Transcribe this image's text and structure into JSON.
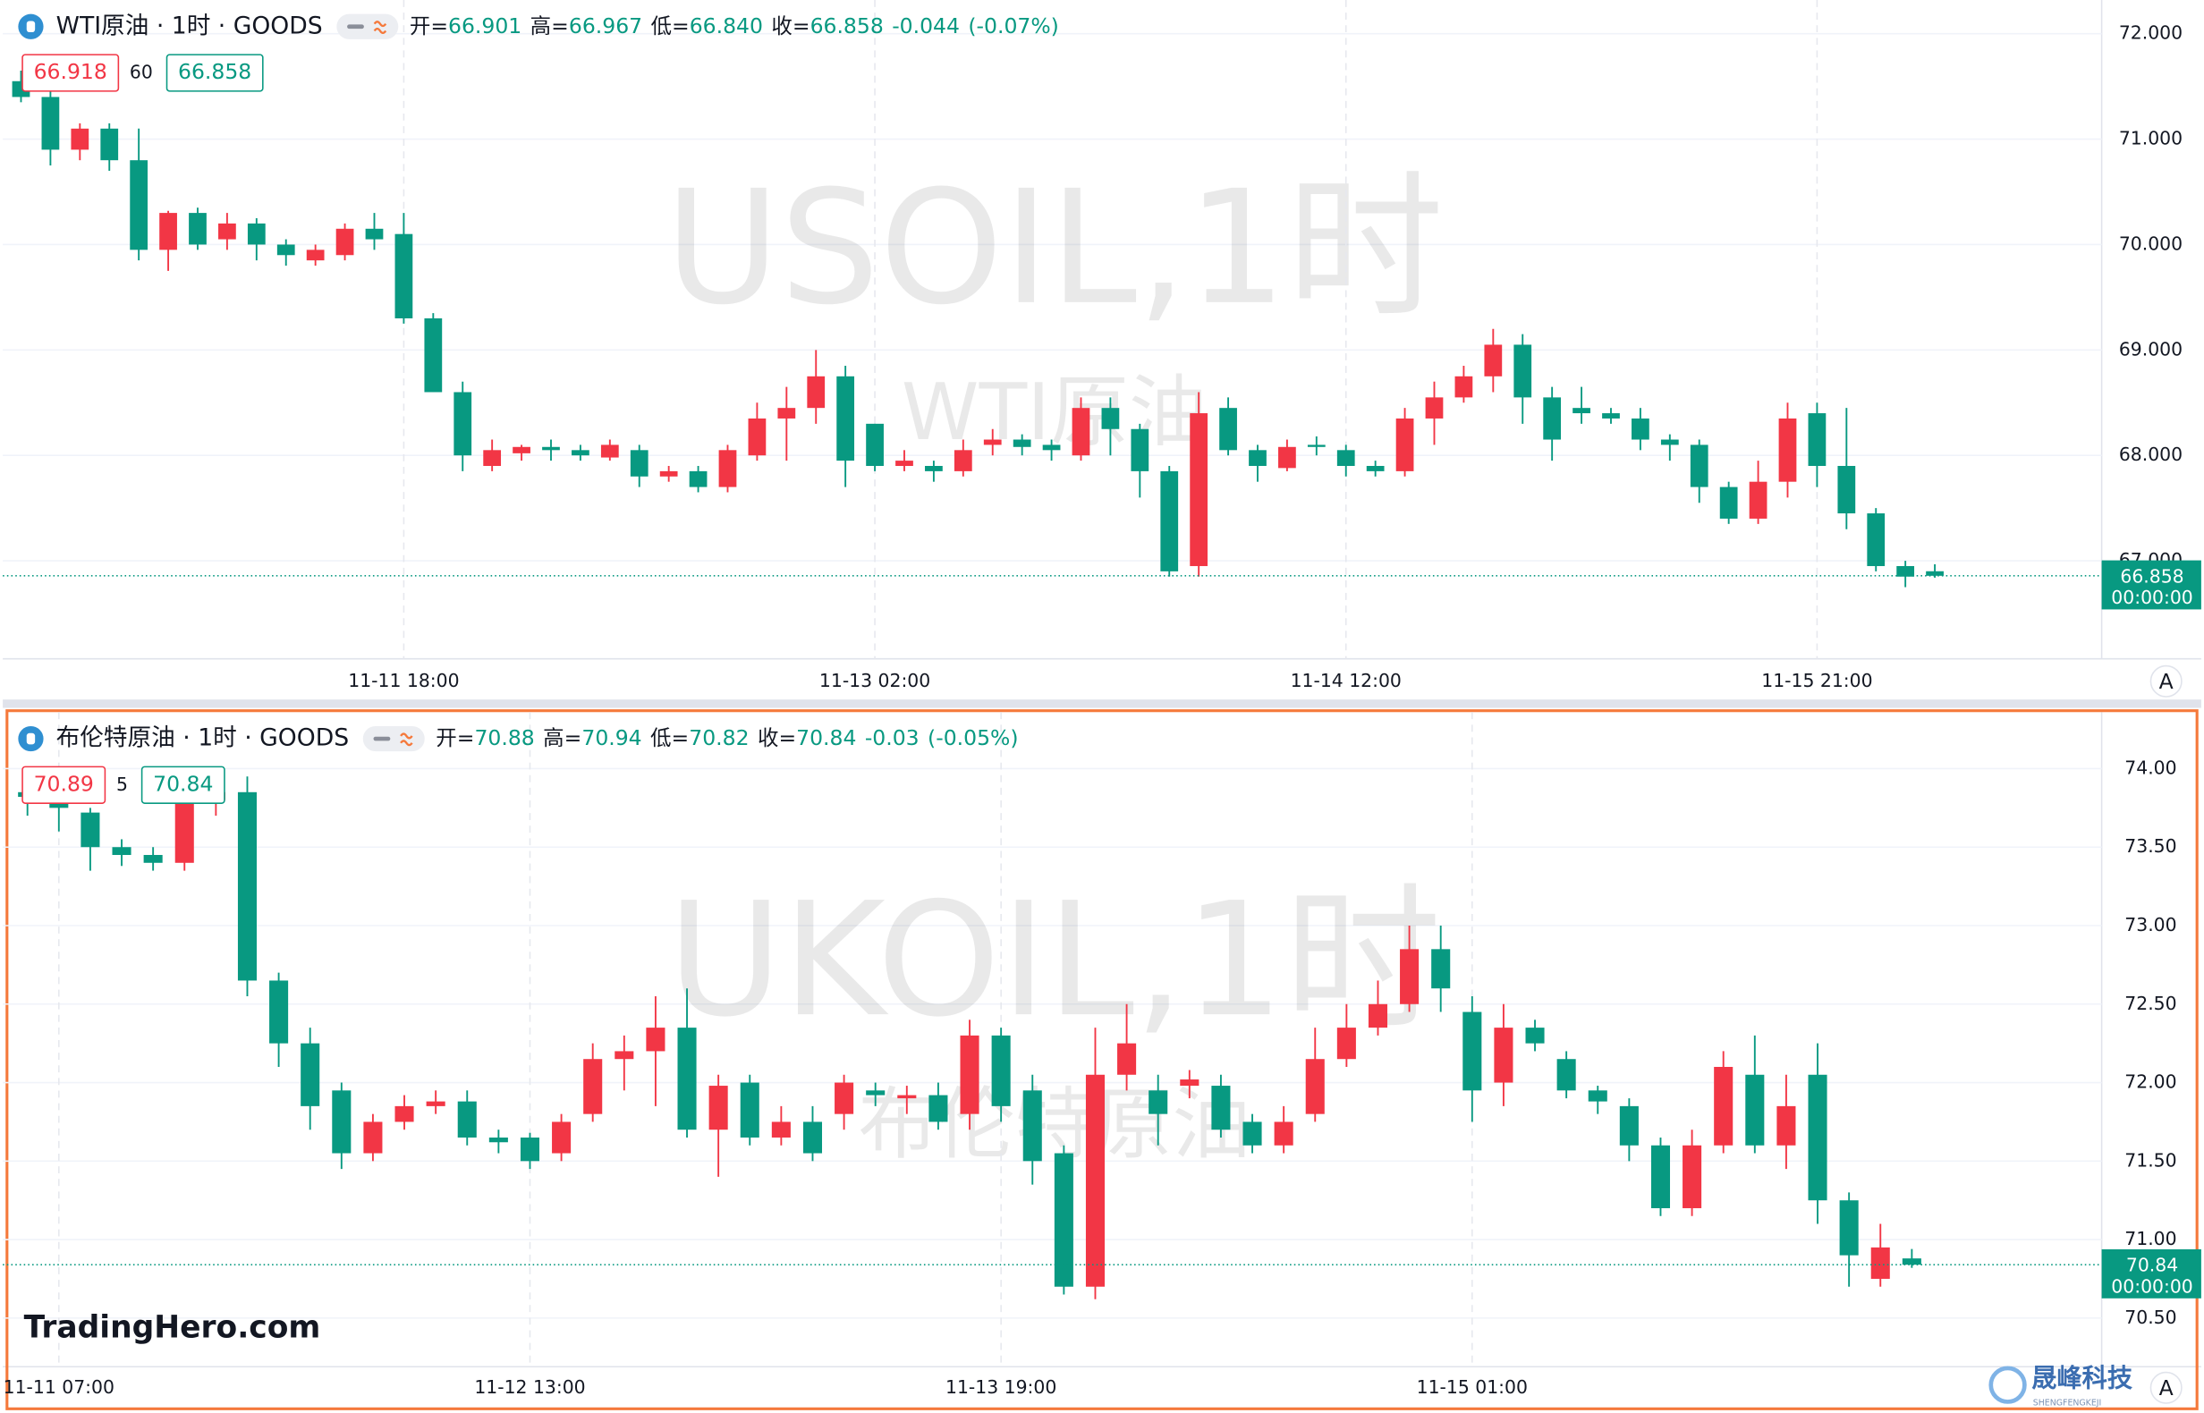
{
  "chart_data": [
    {
      "type": "candlestick",
      "title": "WTI原油 · 1时 · GOODS",
      "watermark": "USOIL,1时",
      "watermark_subtitle": "WTI原油",
      "stats": {
        "open_label": "开=",
        "open": 66.901,
        "high_label": "高=",
        "high": 66.967,
        "low_label": "低=",
        "low": {
          "value": 66.84,
          "label": "66.840"
        },
        "close_label": "收=",
        "close": 66.858,
        "change": -0.044,
        "change_pct": {
          "value": -0.07,
          "label": "(-0.07%)"
        }
      },
      "quote": {
        "bid": 66.918,
        "spread": 60,
        "ask": 66.858
      },
      "last_price": 66.858,
      "countdown": "00:00:00",
      "auto_button": "A",
      "up_color": "#f23645",
      "down_color": "#089981",
      "grid": true,
      "categories": [
        null,
        null,
        null,
        null,
        null,
        null,
        null,
        null,
        null,
        null,
        null,
        null,
        null,
        "11-11 18:00",
        null,
        null,
        null,
        null,
        null,
        null,
        null,
        null,
        null,
        null,
        null,
        null,
        null,
        null,
        null,
        "11-13 02:00",
        null,
        null,
        null,
        null,
        null,
        null,
        null,
        null,
        null,
        null,
        null,
        null,
        null,
        null,
        null,
        "11-14 12:00",
        null,
        null,
        null,
        null,
        null,
        null,
        null,
        null,
        null,
        null,
        null,
        null,
        null,
        null,
        null,
        "11-15 21:00",
        null,
        null,
        null,
        null
      ],
      "open": [
        71.55,
        71.4,
        70.9,
        71.1,
        70.8,
        69.95,
        70.3,
        70.05,
        70.2,
        70.0,
        69.85,
        69.9,
        70.15,
        70.1,
        69.3,
        68.6,
        67.9,
        68.02,
        68.08,
        68.05,
        67.98,
        68.05,
        67.8,
        67.85,
        67.7,
        68.0,
        68.35,
        68.45,
        68.75,
        68.3,
        67.9,
        67.9,
        67.85,
        68.1,
        68.15,
        68.1,
        68.0,
        68.45,
        68.25,
        67.85,
        66.95,
        68.45,
        68.05,
        67.88,
        68.1,
        68.05,
        67.9,
        67.85,
        68.35,
        68.55,
        68.75,
        69.05,
        68.55,
        68.45,
        68.4,
        68.35,
        68.15,
        68.1,
        67.7,
        67.4,
        67.75,
        68.4,
        67.9,
        67.45,
        66.95,
        66.901
      ],
      "high": [
        71.65,
        71.45,
        71.15,
        71.15,
        71.1,
        70.32,
        70.35,
        70.3,
        70.25,
        70.05,
        70.0,
        70.2,
        70.3,
        70.3,
        69.35,
        68.7,
        68.15,
        68.1,
        68.15,
        68.1,
        68.15,
        68.1,
        67.9,
        67.9,
        68.1,
        68.5,
        68.65,
        69.0,
        68.85,
        68.3,
        68.05,
        67.95,
        68.15,
        68.25,
        68.2,
        68.15,
        68.55,
        68.55,
        68.3,
        67.9,
        68.6,
        68.55,
        68.1,
        68.15,
        68.18,
        68.1,
        67.95,
        68.45,
        68.7,
        68.85,
        69.2,
        69.15,
        68.65,
        68.65,
        68.45,
        68.45,
        68.2,
        68.15,
        67.75,
        67.95,
        68.5,
        68.5,
        68.45,
        67.5,
        67.0,
        66.967
      ],
      "low": [
        71.35,
        70.75,
        70.8,
        70.7,
        69.85,
        69.75,
        69.95,
        69.95,
        69.85,
        69.8,
        69.8,
        69.85,
        69.95,
        69.25,
        68.6,
        67.85,
        67.85,
        67.95,
        67.95,
        67.95,
        67.95,
        67.7,
        67.75,
        67.65,
        67.65,
        67.95,
        67.95,
        68.3,
        67.7,
        67.85,
        67.85,
        67.75,
        67.8,
        68.0,
        68.0,
        67.95,
        67.95,
        68.0,
        67.6,
        66.85,
        66.85,
        68.0,
        67.75,
        67.85,
        68.0,
        67.8,
        67.8,
        67.8,
        68.1,
        68.5,
        68.6,
        68.3,
        67.95,
        68.3,
        68.3,
        68.05,
        67.95,
        67.55,
        67.35,
        67.35,
        67.6,
        67.7,
        67.3,
        66.9,
        66.75,
        66.84
      ],
      "close": [
        71.4,
        70.9,
        71.1,
        70.8,
        69.95,
        70.3,
        70.0,
        70.2,
        70.0,
        69.9,
        69.95,
        70.15,
        70.05,
        69.3,
        68.6,
        68.0,
        68.05,
        68.08,
        68.05,
        68.0,
        68.1,
        67.8,
        67.85,
        67.7,
        68.05,
        68.35,
        68.45,
        68.75,
        67.95,
        67.9,
        67.95,
        67.85,
        68.05,
        68.15,
        68.08,
        68.05,
        68.45,
        68.25,
        67.85,
        66.9,
        68.4,
        68.05,
        67.9,
        68.08,
        68.08,
        67.9,
        67.85,
        68.35,
        68.55,
        68.75,
        69.05,
        68.55,
        68.15,
        68.4,
        68.35,
        68.15,
        68.1,
        67.7,
        67.4,
        67.75,
        68.35,
        67.9,
        67.45,
        66.95,
        66.85,
        66.858
      ],
      "ylim": [
        66.07,
        72.32
      ],
      "yticks": [
        {
          "value": 67,
          "label": "67.000"
        },
        {
          "value": 68,
          "label": "68.000"
        },
        {
          "value": 69,
          "label": "69.000"
        },
        {
          "value": 70,
          "label": "70.000"
        },
        {
          "value": 71,
          "label": "71.000"
        },
        {
          "value": 72,
          "label": "72.000"
        }
      ]
    },
    {
      "type": "candlestick",
      "title": "布伦特原油 · 1时 · GOODS",
      "watermark": "UKOIL,1时",
      "watermark_subtitle": "布伦特原油",
      "stats": {
        "open_label": "开=",
        "open": 70.88,
        "high_label": "高=",
        "high": 70.94,
        "low_label": "低=",
        "low": 70.82,
        "close_label": "收=",
        "close": 70.84,
        "change": -0.03,
        "change_pct": {
          "value": -0.05,
          "label": "(-0.05%)"
        }
      },
      "quote": {
        "bid": 70.89,
        "spread": 5,
        "ask": 70.84
      },
      "last_price": 70.84,
      "countdown": "00:00:00",
      "auto_button": "A",
      "up_color": "#f23645",
      "down_color": "#089981",
      "grid": true,
      "categories": [
        null,
        "11-11 07:00",
        null,
        null,
        null,
        null,
        null,
        null,
        null,
        null,
        null,
        null,
        null,
        null,
        null,
        null,
        "11-12 13:00",
        null,
        null,
        null,
        null,
        null,
        null,
        null,
        null,
        null,
        null,
        null,
        null,
        null,
        null,
        "11-13 19:00",
        null,
        null,
        null,
        null,
        null,
        null,
        null,
        null,
        null,
        null,
        null,
        null,
        null,
        null,
        "11-15 01:00",
        null,
        null,
        null,
        null,
        null,
        null,
        null,
        null,
        null,
        null,
        null,
        null,
        null,
        null
      ],
      "open": [
        73.85,
        73.82,
        73.72,
        73.5,
        73.45,
        73.4,
        73.8,
        73.85,
        72.65,
        72.25,
        71.95,
        71.55,
        71.75,
        71.85,
        71.88,
        71.65,
        71.65,
        71.55,
        71.8,
        72.15,
        72.2,
        72.35,
        71.7,
        72.0,
        71.65,
        71.75,
        71.8,
        71.95,
        71.9,
        71.92,
        71.8,
        72.3,
        71.95,
        71.55,
        70.7,
        72.05,
        71.95,
        71.98,
        71.98,
        71.75,
        71.6,
        71.8,
        72.15,
        72.35,
        72.5,
        72.85,
        72.45,
        72.0,
        72.35,
        72.15,
        71.95,
        71.85,
        71.6,
        71.2,
        71.6,
        72.05,
        71.6,
        72.05,
        71.25,
        70.75,
        70.88
      ],
      "high": [
        73.9,
        73.85,
        73.75,
        73.55,
        73.5,
        73.95,
        73.95,
        73.95,
        72.7,
        72.35,
        72.0,
        71.8,
        71.92,
        71.95,
        71.95,
        71.7,
        71.68,
        71.8,
        72.25,
        72.3,
        72.55,
        72.6,
        72.05,
        72.05,
        71.85,
        71.85,
        72.05,
        72.0,
        71.98,
        72.0,
        72.4,
        72.35,
        72.05,
        71.6,
        72.35,
        72.5,
        72.05,
        72.08,
        72.05,
        71.8,
        71.85,
        72.35,
        72.5,
        72.65,
        73.0,
        73.0,
        72.55,
        72.5,
        72.4,
        72.2,
        71.98,
        71.9,
        71.65,
        71.7,
        72.2,
        72.3,
        72.05,
        72.25,
        71.3,
        71.1,
        70.94
      ],
      "low": [
        73.7,
        73.6,
        73.35,
        73.38,
        73.35,
        73.35,
        73.7,
        72.55,
        72.1,
        71.7,
        71.45,
        71.5,
        71.7,
        71.8,
        71.6,
        71.55,
        71.45,
        71.5,
        71.75,
        71.95,
        71.85,
        71.65,
        71.4,
        71.6,
        71.6,
        71.5,
        71.7,
        71.85,
        71.8,
        71.7,
        71.7,
        71.75,
        71.35,
        70.65,
        70.62,
        71.95,
        71.6,
        71.9,
        71.65,
        71.55,
        71.55,
        71.75,
        72.1,
        72.3,
        72.45,
        72.45,
        71.75,
        71.85,
        72.2,
        71.9,
        71.8,
        71.5,
        71.15,
        71.15,
        71.55,
        71.55,
        71.45,
        71.1,
        70.7,
        70.7,
        70.82
      ],
      "close": [
        73.82,
        73.75,
        73.5,
        73.45,
        73.4,
        73.8,
        73.85,
        72.65,
        72.25,
        71.85,
        71.55,
        71.75,
        71.85,
        71.88,
        71.65,
        71.62,
        71.5,
        71.75,
        72.15,
        72.2,
        72.35,
        71.7,
        71.98,
        71.65,
        71.75,
        71.55,
        72.0,
        71.92,
        71.92,
        71.75,
        72.3,
        71.85,
        71.5,
        70.7,
        72.05,
        72.25,
        71.8,
        72.02,
        71.7,
        71.6,
        71.75,
        72.15,
        72.35,
        72.5,
        72.85,
        72.6,
        71.95,
        72.35,
        72.25,
        71.95,
        71.88,
        71.6,
        71.2,
        71.6,
        72.1,
        71.6,
        71.85,
        71.25,
        70.9,
        70.95,
        70.84
      ],
      "ylim": [
        70.19,
        74.36
      ],
      "yticks": [
        {
          "value": 70.5,
          "label": "70.50"
        },
        {
          "value": 71,
          "label": "71.00"
        },
        {
          "value": 71.5,
          "label": "71.50"
        },
        {
          "value": 72,
          "label": "72.00"
        },
        {
          "value": 72.5,
          "label": "72.50"
        },
        {
          "value": 73,
          "label": "73.00"
        },
        {
          "value": 73.5,
          "label": "73.50"
        },
        {
          "value": 74,
          "label": "74.00"
        }
      ]
    }
  ],
  "branding": {
    "logo": "TradingHero.com",
    "watermark": "晟峰科技",
    "watermark_latin": "SHENGFENGKEJI"
  }
}
